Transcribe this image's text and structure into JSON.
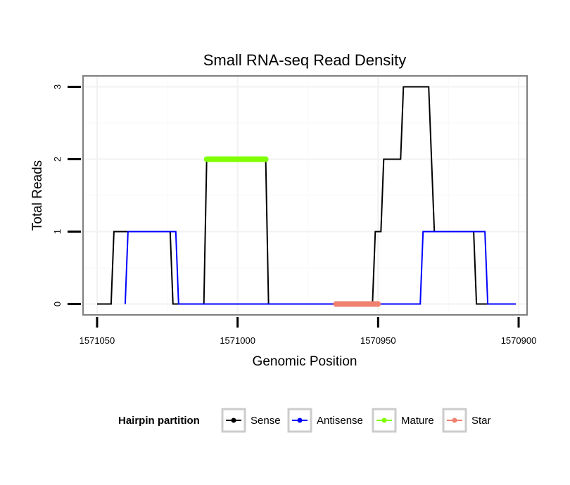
{
  "chart_data": {
    "type": "line",
    "title": "Small RNA-seq Read Density",
    "xlabel": "Genomic Position",
    "ylabel": "Total Reads",
    "x_reversed": true,
    "xlim": [
      1571055,
      1570897
    ],
    "ylim": [
      -0.15,
      3.15
    ],
    "x_ticks": [
      1571050,
      1571000,
      1570950,
      1570900
    ],
    "x_tick_labels": [
      "1571050",
      "1571000",
      "1570950",
      "1570900"
    ],
    "y_ticks": [
      0,
      1,
      2,
      3
    ],
    "y_tick_labels": [
      "0",
      "1",
      "2",
      "3"
    ],
    "grid": true,
    "legend": {
      "title": "Hairpin partition",
      "position": "bottom",
      "entries": [
        "Sense",
        "Antisense",
        "Mature",
        "Star"
      ]
    },
    "series": [
      {
        "name": "Sense",
        "color": "#000000",
        "width": "thin",
        "points": [
          [
            1571050,
            0
          ],
          [
            1571045,
            0
          ],
          [
            1571044,
            1
          ],
          [
            1571024,
            1
          ],
          [
            1571023,
            0
          ],
          [
            1571012,
            0
          ],
          [
            1571011,
            2
          ],
          [
            1570990,
            2
          ],
          [
            1570989,
            0
          ],
          [
            1570952,
            0
          ],
          [
            1570951,
            1
          ],
          [
            1570949,
            1
          ],
          [
            1570948,
            2
          ],
          [
            1570942,
            2
          ],
          [
            1570941,
            3
          ],
          [
            1570932,
            3
          ],
          [
            1570930,
            1
          ],
          [
            1570916,
            1
          ],
          [
            1570915,
            0
          ],
          [
            1570901,
            0
          ]
        ]
      },
      {
        "name": "Antisense",
        "color": "#0000ff",
        "width": "thin",
        "points": [
          [
            1571040,
            0
          ],
          [
            1571039,
            1
          ],
          [
            1571022,
            1
          ],
          [
            1571021,
            0
          ],
          [
            1570935,
            0
          ],
          [
            1570934,
            1
          ],
          [
            1570912,
            1
          ],
          [
            1570911,
            0
          ],
          [
            1570901,
            0
          ]
        ]
      },
      {
        "name": "Mature",
        "color": "#7fff00",
        "width": "thick",
        "points": [
          [
            1571011,
            2
          ],
          [
            1570990,
            2
          ]
        ]
      },
      {
        "name": "Star",
        "color": "#f08070",
        "width": "thick",
        "points": [
          [
            1570965,
            0
          ],
          [
            1570950,
            0
          ]
        ]
      }
    ]
  }
}
